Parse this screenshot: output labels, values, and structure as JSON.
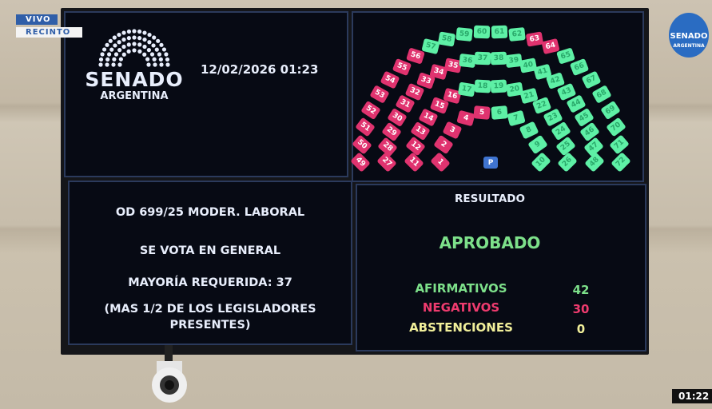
{
  "overlay": {
    "live": "VIVO",
    "location": "RECINTO",
    "clock": "01:22",
    "channel_logo": "SENADO ARGENTINA"
  },
  "board": {
    "logo": {
      "line1": "SENADO",
      "line2": "ARGENTINA"
    },
    "datetime": "12/02/2026 01:23",
    "motion": {
      "title": "OD 699/25 MODER. LABORAL",
      "vote_type": "SE VOTA EN GENERAL",
      "majority": "MAYORÍA REQUERIDA: 37",
      "majority_note_1": "(MAS 1/2 DE LOS LEGISLADORES",
      "majority_note_2": "PRESENTES)"
    },
    "result": {
      "heading": "RESULTADO",
      "outcome": "APROBADO",
      "rows": [
        {
          "label": "AFIRMATIVOS",
          "value": "42",
          "color": "#7de08a"
        },
        {
          "label": "NEGATIVOS",
          "value": "30",
          "color": "#ee3b6e"
        },
        {
          "label": "ABSTENCIONES",
          "value": "0",
          "color": "#f1ef9a"
        }
      ]
    },
    "seats": {
      "president_label": "P",
      "colors": {
        "yes": "#5ef0a6",
        "no": "#e0336f",
        "president": "#3f74d0"
      },
      "rows": [
        [
          1,
          10
        ],
        [
          11,
          26
        ],
        [
          27,
          48
        ],
        [
          49,
          72
        ]
      ],
      "no_votes": [
        1,
        2,
        3,
        4,
        5,
        11,
        12,
        13,
        14,
        15,
        16,
        27,
        28,
        29,
        30,
        31,
        32,
        33,
        34,
        35,
        49,
        50,
        51,
        52,
        53,
        54,
        55,
        56,
        63,
        64
      ]
    }
  }
}
